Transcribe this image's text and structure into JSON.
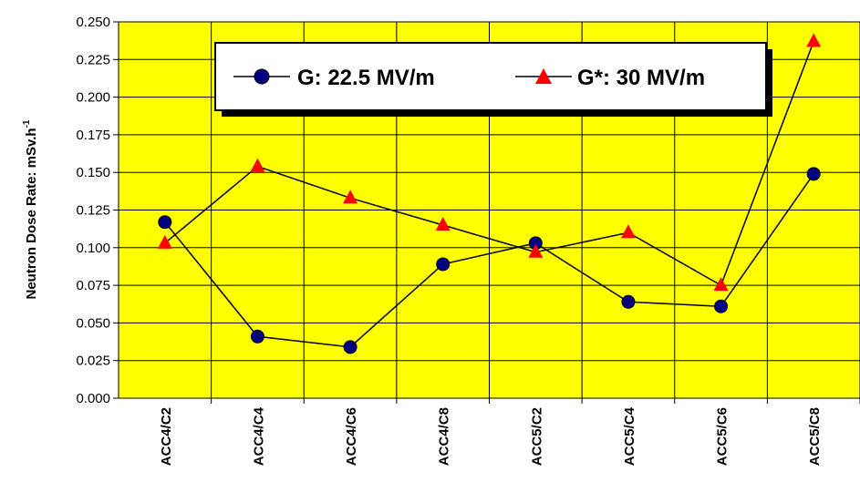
{
  "chart_data": {
    "type": "line",
    "categories": [
      "ACC4/C2",
      "ACC4/C4",
      "ACC4/C6",
      "ACC4/C8",
      "ACC5/C2",
      "ACC5/C4",
      "ACC5/C6",
      "ACC5/C8"
    ],
    "series": [
      {
        "name": "G: 22.5 MV/m",
        "marker": "circle",
        "color": "#000080",
        "values": [
          0.117,
          0.041,
          0.034,
          0.089,
          0.103,
          0.064,
          0.061,
          0.149
        ]
      },
      {
        "name": "G*: 30 MV/m",
        "marker": "triangle",
        "color": "#ff0000",
        "values": [
          0.103,
          0.154,
          0.133,
          0.115,
          0.097,
          0.11,
          0.075,
          0.237
        ]
      }
    ],
    "ylabel": "Neutron Dose Rate: mSv.h",
    "ylabel_superscript": "-1",
    "ylim": [
      0,
      0.25
    ],
    "yticks": [
      "0.000",
      "0.025",
      "0.050",
      "0.075",
      "0.100",
      "0.125",
      "0.150",
      "0.175",
      "0.200",
      "0.225",
      "0.250"
    ],
    "grid": true,
    "legend_position": "top-center",
    "colors": {
      "page_background": "#0a1a85",
      "plot_background": "#ffff00",
      "grid": "#000000"
    }
  }
}
